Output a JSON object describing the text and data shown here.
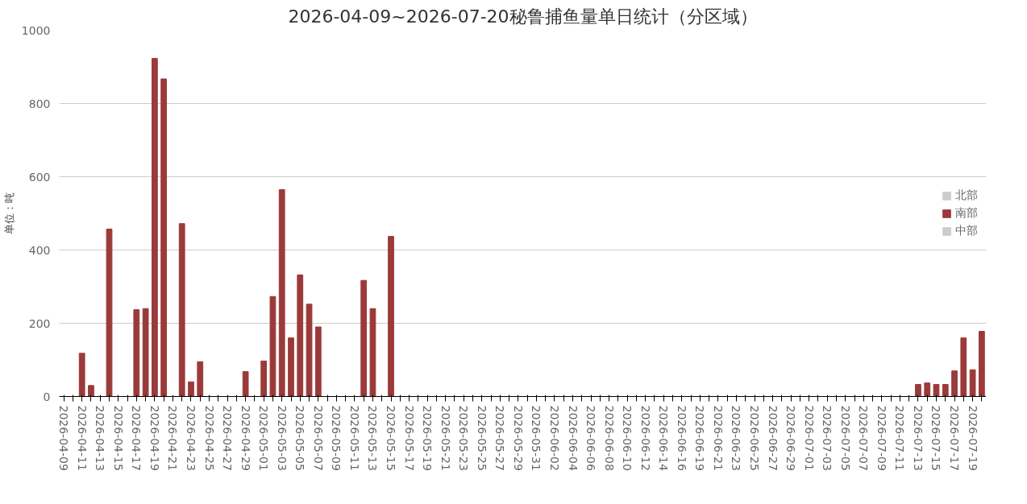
{
  "chart_data": {
    "type": "bar",
    "title": "2026-04-09~2026-07-20秘鲁捕鱼量单日统计（分区域）",
    "ylabel": "单位：吨",
    "categories": [
      "2026-04-09",
      null,
      "2026-04-11",
      null,
      "2026-04-13",
      null,
      "2026-04-15",
      null,
      "2026-04-17",
      null,
      "2026-04-19",
      null,
      "2026-04-21",
      null,
      "2026-04-23",
      null,
      "2026-04-25",
      null,
      "2026-04-27",
      null,
      "2026-04-29",
      null,
      "2026-05-01",
      null,
      "2026-05-03",
      null,
      "2026-05-05",
      null,
      "2026-05-07",
      null,
      "2026-05-09",
      null,
      "2026-05-11",
      null,
      "2026-05-13",
      null,
      "2026-05-15",
      null,
      "2026-05-17",
      null,
      "2026-05-19",
      null,
      "2026-05-21",
      null,
      "2026-05-23",
      null,
      "2026-05-25",
      null,
      "2026-05-27",
      null,
      "2026-05-29",
      null,
      "2026-05-31",
      null,
      "2026-06-02",
      null,
      "2026-06-04",
      null,
      "2026-06-06",
      null,
      "2026-06-08",
      null,
      "2026-06-10",
      null,
      "2026-06-12",
      null,
      "2026-06-14",
      null,
      "2026-06-16",
      null,
      "2026-06-19",
      null,
      "2026-06-21",
      null,
      "2026-06-23",
      null,
      "2026-06-25",
      null,
      "2026-06-27",
      null,
      "2026-06-29",
      null,
      "2026-07-01",
      null,
      "2026-07-03",
      null,
      "2026-07-05",
      null,
      "2026-07-07",
      null,
      "2026-07-09",
      null,
      "2026-07-11",
      null,
      "2026-07-13",
      null,
      "2026-07-15",
      null,
      "2026-07-17",
      null,
      "2026-07-19",
      null
    ],
    "series": [
      {
        "name": "北部",
        "color": "#cccccc",
        "values": [
          null,
          null,
          null,
          null,
          null,
          null,
          null,
          null,
          null,
          null,
          null,
          null,
          null,
          null,
          null,
          null,
          null,
          null,
          null,
          null,
          null,
          null,
          null,
          null,
          null,
          null,
          null,
          null,
          null,
          null,
          null,
          null,
          null,
          null,
          null,
          null,
          null,
          null,
          null,
          null,
          null,
          null,
          null,
          null,
          null,
          null,
          null,
          null,
          null,
          null,
          null,
          null,
          null,
          null,
          null,
          null,
          null,
          null,
          null,
          null,
          null,
          null,
          null,
          null,
          null,
          null,
          null,
          null,
          null,
          null,
          null,
          null,
          null,
          null,
          null,
          null,
          null,
          null,
          null,
          null,
          null,
          null,
          null,
          null,
          null,
          null,
          null,
          null,
          null,
          null,
          null,
          null,
          null,
          null,
          null,
          null,
          null,
          null,
          null,
          null,
          null,
          null
        ]
      },
      {
        "name": "南部",
        "color": "#9b3a3a",
        "values": [
          0,
          0,
          118,
          30,
          0,
          457,
          0,
          0,
          237,
          240,
          923,
          867,
          0,
          472,
          40,
          95,
          0,
          0,
          0,
          0,
          68,
          0,
          97,
          273,
          565,
          160,
          332,
          252,
          190,
          0,
          0,
          0,
          0,
          317,
          240,
          0,
          437,
          0,
          0,
          0,
          0,
          0,
          0,
          0,
          0,
          0,
          0,
          0,
          0,
          0,
          0,
          0,
          0,
          0,
          0,
          0,
          0,
          0,
          0,
          0,
          0,
          0,
          0,
          0,
          0,
          0,
          0,
          0,
          0,
          0,
          0,
          0,
          0,
          0,
          0,
          0,
          0,
          0,
          0,
          0,
          0,
          0,
          0,
          0,
          0,
          0,
          0,
          0,
          0,
          0,
          0,
          0,
          0,
          0,
          33,
          37,
          33,
          33,
          70,
          160,
          73,
          178
        ]
      },
      {
        "name": "中部",
        "color": "#cccccc",
        "values": [
          null,
          null,
          null,
          null,
          null,
          null,
          null,
          null,
          null,
          null,
          null,
          null,
          null,
          null,
          null,
          null,
          null,
          null,
          null,
          null,
          null,
          null,
          null,
          null,
          null,
          null,
          null,
          null,
          null,
          null,
          null,
          null,
          null,
          null,
          null,
          null,
          null,
          null,
          null,
          null,
          null,
          null,
          null,
          null,
          null,
          null,
          null,
          null,
          null,
          null,
          null,
          null,
          null,
          null,
          null,
          null,
          null,
          null,
          null,
          null,
          null,
          null,
          null,
          null,
          null,
          null,
          null,
          null,
          null,
          null,
          null,
          null,
          null,
          null,
          null,
          null,
          null,
          null,
          null,
          null,
          null,
          null,
          null,
          null,
          null,
          null,
          null,
          null,
          null,
          null,
          null,
          null,
          null,
          null,
          null,
          null,
          null,
          null,
          null,
          null,
          null,
          null
        ]
      }
    ],
    "ylim": [
      0,
      1000
    ],
    "yticks": [
      0,
      200,
      400,
      600,
      800,
      1000
    ],
    "grid": "y",
    "legend": "right"
  }
}
